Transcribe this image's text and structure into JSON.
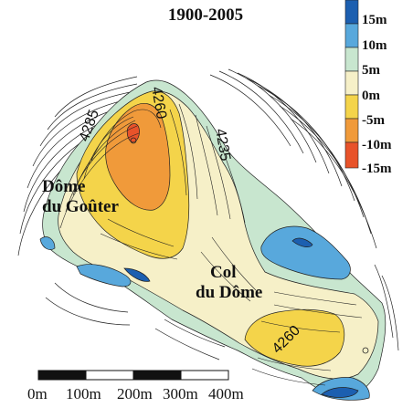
{
  "title": "1900-2005",
  "places": {
    "dome_du_gouter_line1": "Dôme",
    "dome_du_gouter_line2": "du Goûter",
    "col_du_dome_line1": "Col",
    "col_du_dome_line2": "du Dôme"
  },
  "contour_labels": {
    "label_4285": "4285",
    "label_4260_top": "4260",
    "label_4235": "4235",
    "label_4260_bottom": "4260"
  },
  "legend": {
    "items": [
      {
        "label": "15m",
        "color": "#1c5fb0"
      },
      {
        "label": "10m",
        "color": "#58a8dc"
      },
      {
        "label": "5m",
        "color": "#c8e6cf"
      },
      {
        "label": "0m",
        "color": "#f6f0c8"
      },
      {
        "label": "-5m",
        "color": "#f4d44a"
      },
      {
        "label": "-10m",
        "color": "#f09a3a"
      },
      {
        "label": "-15m",
        "color": "#e8532a"
      }
    ]
  },
  "scale_bar": {
    "labels": [
      "0m",
      "100m",
      "200m",
      "300m",
      "400m"
    ]
  }
}
